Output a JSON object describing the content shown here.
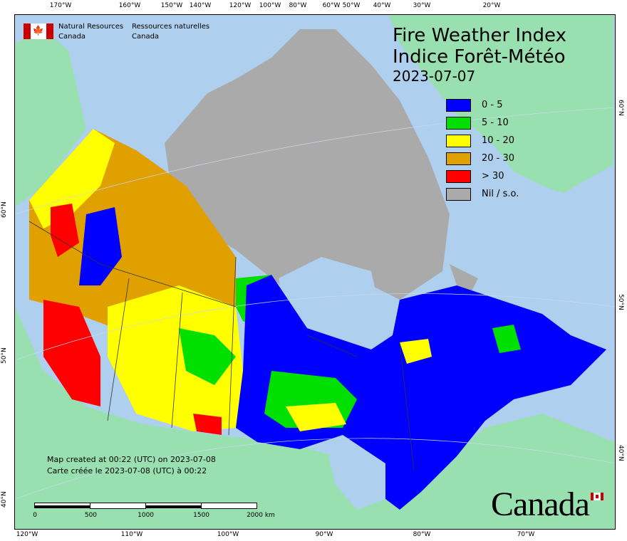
{
  "header": {
    "agency_en": "Natural Resources",
    "agency_en_2": "Canada",
    "agency_fr": "Ressources naturelles",
    "agency_fr_2": "Canada"
  },
  "title": {
    "line1": "Fire Weather Index",
    "line2": "Indice Forêt-Météo",
    "date": "2023-07-07"
  },
  "legend": [
    {
      "label": "0 - 5",
      "color": "#0000ff"
    },
    {
      "label": "5 - 10",
      "color": "#00e000"
    },
    {
      "label": "10 - 20",
      "color": "#ffff00"
    },
    {
      "label": "20 - 30",
      "color": "#e0a000"
    },
    {
      "label": "> 30",
      "color": "#ff0000"
    },
    {
      "label": "Nil / s.o.",
      "color": "#aaaaaa"
    }
  ],
  "colors": {
    "water": "#afcfee",
    "land": "#98e0b0",
    "nodata": "#aaaaaa"
  },
  "axes": {
    "top": [
      "170°W",
      "160°W",
      "150°W",
      "140°W",
      "120°W",
      "100°W",
      "80°W",
      "60°W",
      "50°W",
      "40°W",
      "30°W",
      "20°W"
    ],
    "bottom": [
      "120°W",
      "110°W",
      "100°W",
      "90°W",
      "80°W",
      "70°W"
    ],
    "left": [
      "60°N",
      "50°N",
      "40°N"
    ],
    "right": [
      "60°N",
      "50°N",
      "40°N"
    ]
  },
  "footer": {
    "created_en": "Map created at 00:22 (UTC) on 2023-07-08",
    "created_fr": "Carte créée le 2023-07-08 (UTC) à 00:22",
    "scale_labels": [
      "0",
      "500",
      "1000",
      "1500",
      "2000 km"
    ],
    "wordmark": "Canada"
  }
}
